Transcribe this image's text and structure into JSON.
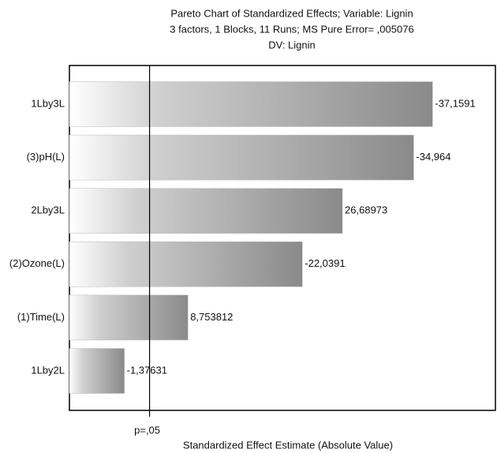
{
  "chart_data": {
    "type": "pareto",
    "title": "Pareto Chart of Standardized Effects; Variable: Lignin",
    "subtitle": "3 factors, 1 Blocks, 11 Runs; MS Pure Error= ,005076",
    "dependent_variable": "DV: Lignin",
    "x_label": "Standardized Effect Estimate (Absolute Value)",
    "categories": [
      "1Lby3L",
      "(3)pH(L)",
      "2Lby3L",
      "(2)Ozone(L)",
      "(1)Time(L)",
      "1Lby2L"
    ],
    "values": [
      -37.1591,
      -34.964,
      26.68973,
      -22.0391,
      8.753812,
      -1.37631
    ],
    "value_labels": [
      "-37,1591",
      "-34,964",
      "26,68973",
      "-22,0391",
      "8,753812",
      "-1,37631"
    ],
    "xlim": [
      -5,
      45
    ],
    "xticks": [
      {
        "value": 4.303,
        "label": "p=,05"
      }
    ],
    "color": "#8a8a8a"
  }
}
